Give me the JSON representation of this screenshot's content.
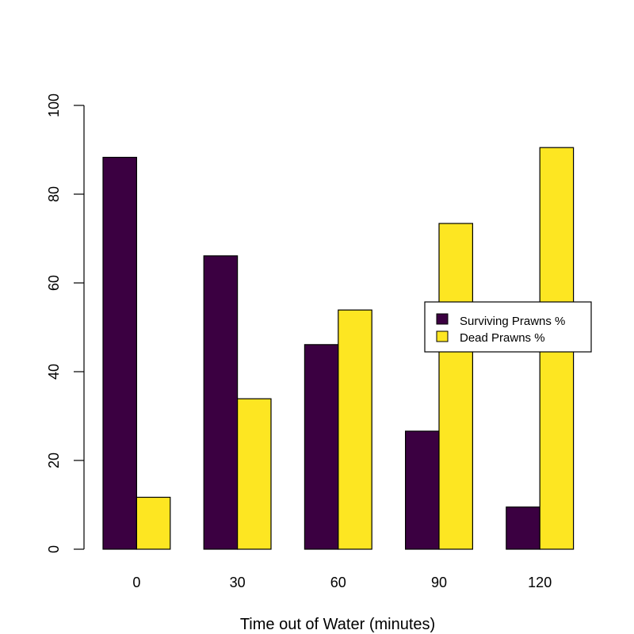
{
  "chart_data": {
    "type": "bar",
    "categories": [
      "0",
      "30",
      "60",
      "90",
      "120"
    ],
    "series": [
      {
        "name": "Surviving Prawns %",
        "color": "#3b0041",
        "values": [
          88.3,
          66.1,
          46.1,
          26.6,
          9.5
        ]
      },
      {
        "name": "Dead Prawns %",
        "color": "#fde622",
        "values": [
          11.7,
          33.9,
          53.9,
          73.4,
          90.5
        ]
      }
    ],
    "title": "",
    "xlabel": "Time out of Water (minutes)",
    "ylabel": "",
    "ylim": [
      0,
      100
    ],
    "yticks": [
      "0",
      "20",
      "40",
      "60",
      "80",
      "100"
    ],
    "grid": false,
    "legend_position": "right"
  }
}
